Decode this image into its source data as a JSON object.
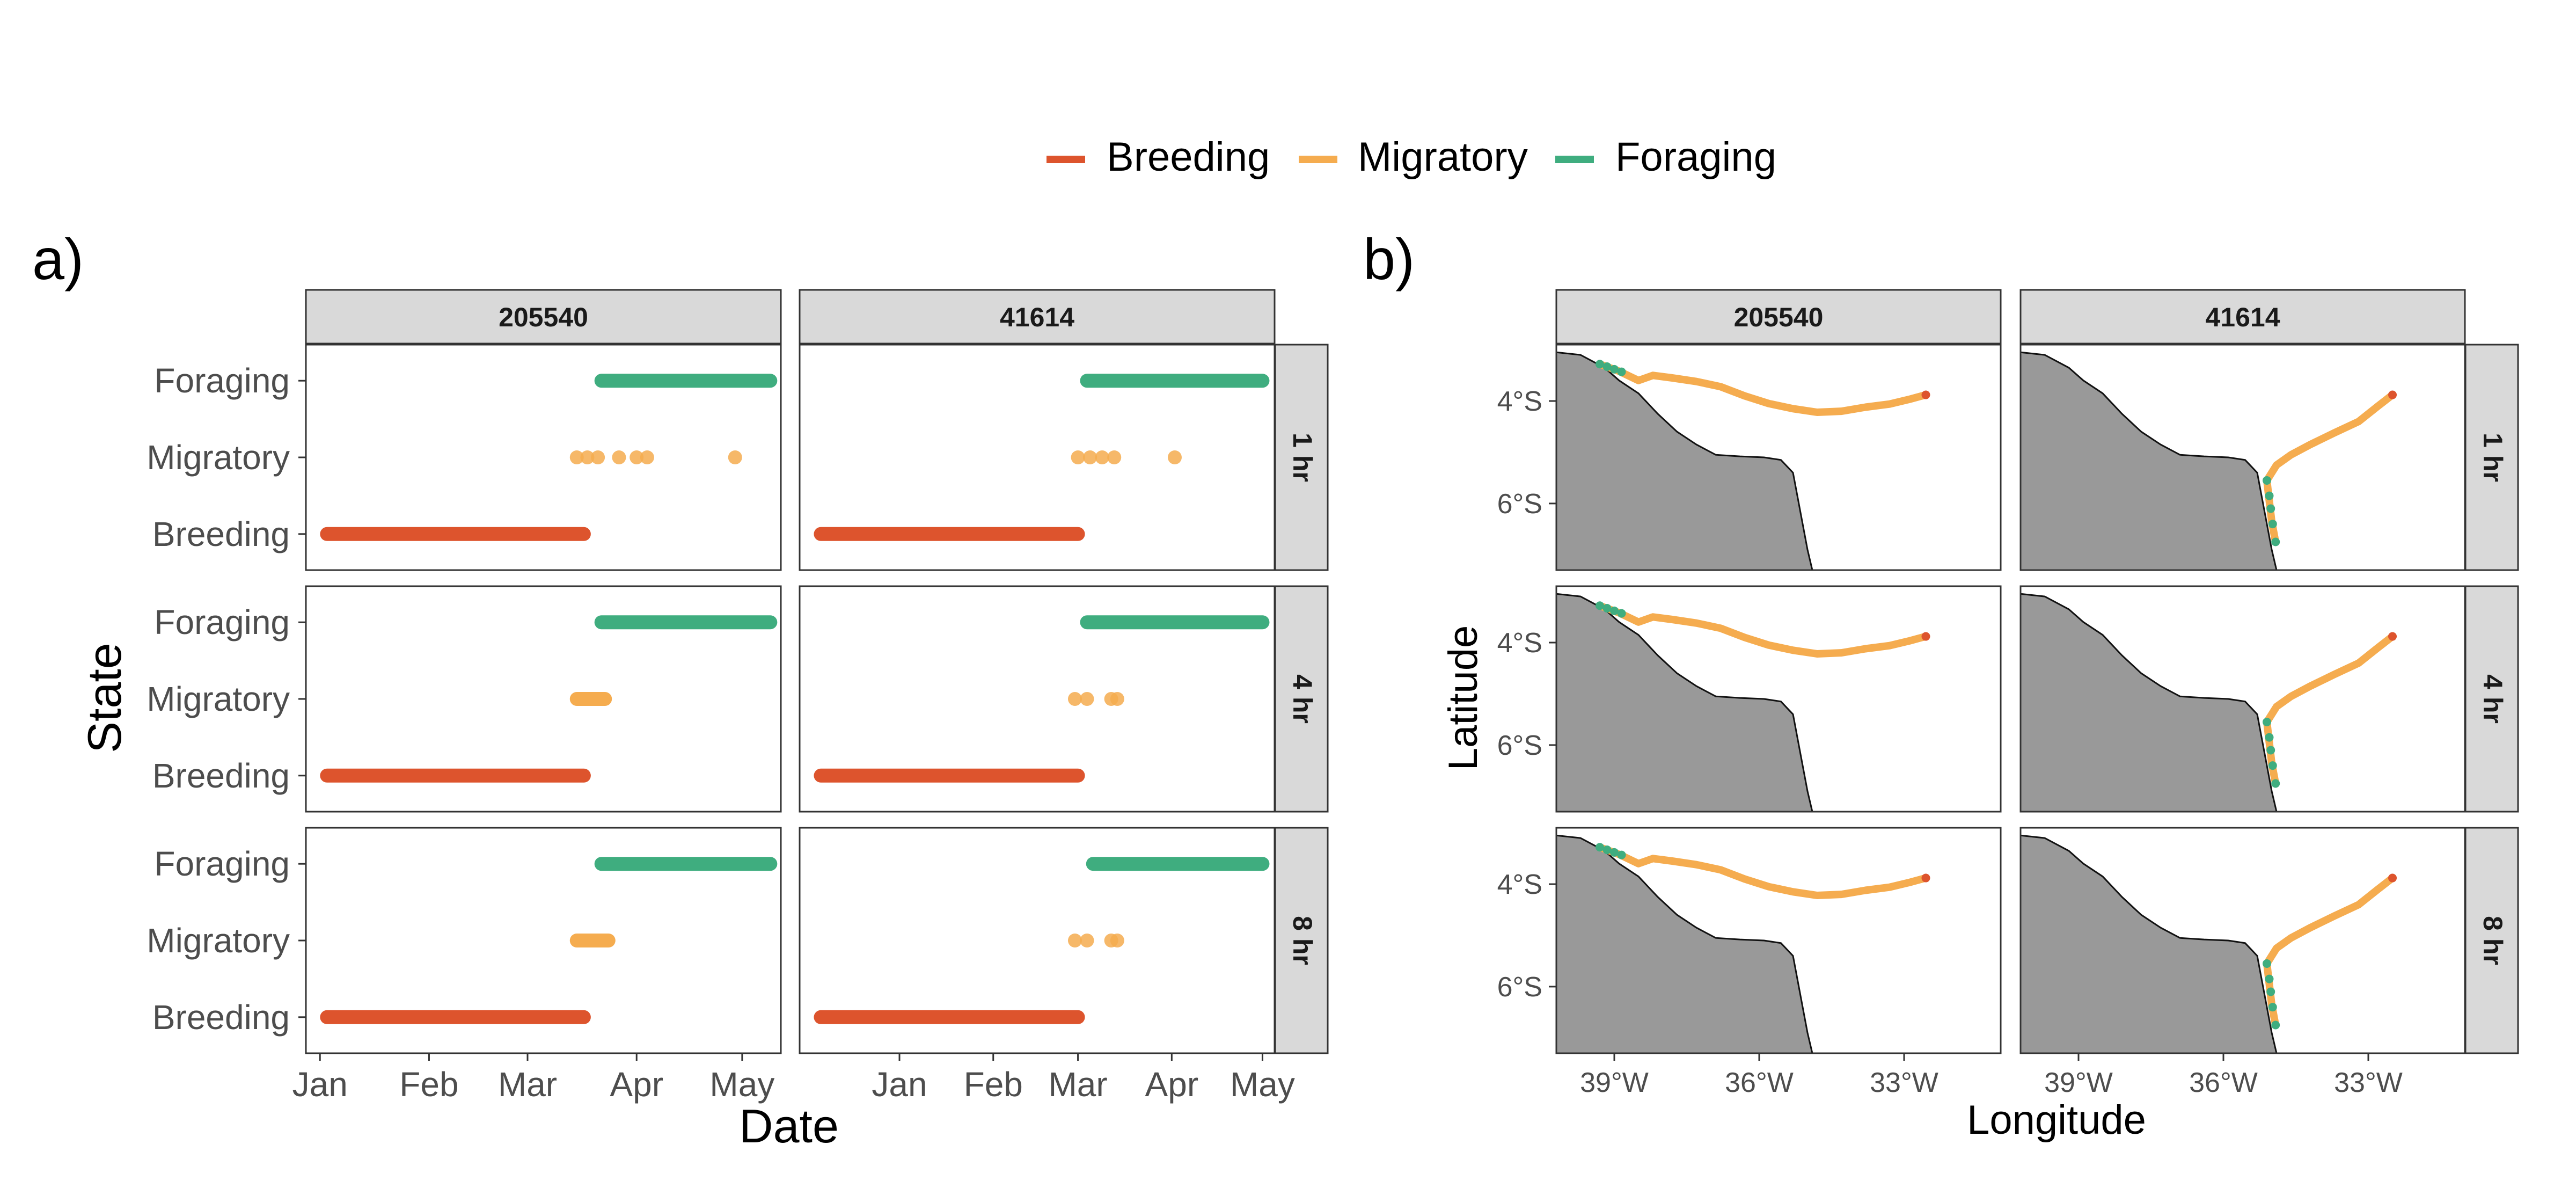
{
  "legend": {
    "items": [
      {
        "label": "Breeding",
        "color": "#DD542D"
      },
      {
        "label": "Migratory",
        "color": "#F5AC4F"
      },
      {
        "label": "Foraging",
        "color": "#3FAD7F"
      }
    ],
    "placement": "top"
  },
  "panel_a": {
    "tag": "a)",
    "facet_columns": [
      "205540",
      "41614"
    ],
    "facet_rows": [
      "1 hr",
      "4 hr",
      "8 hr"
    ],
    "xlabel": "Date",
    "ylabel": "State",
    "y_categories": [
      "Breeding",
      "Migratory",
      "Foraging"
    ],
    "x_ticks_col1": [
      "Jan",
      "Feb",
      "Mar",
      "Apr",
      "May"
    ],
    "x_ticks_col2": [
      "Jan",
      "Feb",
      "Mar",
      "Apr",
      "May"
    ]
  },
  "panel_b": {
    "tag": "b)",
    "facet_columns": [
      "205540",
      "41614"
    ],
    "facet_rows": [
      "1 hr",
      "4 hr",
      "8 hr"
    ],
    "xlabel": "Longitude",
    "ylabel": "Latitude",
    "x_ticks": [
      "39°W",
      "36°W",
      "33°W"
    ],
    "y_ticks": [
      "4°S",
      "6°S"
    ]
  },
  "chart_data": [
    {
      "type": "scatter",
      "description_id": "state-timeline",
      "x_axis": "date",
      "xlim_col1": [
        "2019-12-28",
        "2019-05-12"
      ],
      "panels": [
        {
          "id": "205540",
          "row": "1 hr",
          "segments": [
            {
              "state": "Breeding",
              "start": "2019-01-03",
              "end": "2019-03-17"
            },
            {
              "state": "Migratory",
              "dates": [
                "2019-03-15",
                "2019-03-18",
                "2019-03-21",
                "2019-03-27",
                "2019-04-01",
                "2019-04-04",
                "2019-04-29"
              ]
            },
            {
              "state": "Foraging",
              "start": "2019-03-22",
              "end": "2019-05-09"
            }
          ]
        },
        {
          "id": "41614",
          "row": "1 hr",
          "segments": [
            {
              "state": "Breeding",
              "start": "2018-12-06",
              "end": "2019-03-01"
            },
            {
              "state": "Migratory",
              "dates": [
                "2019-03-01",
                "2019-03-05",
                "2019-03-09",
                "2019-03-13",
                "2019-04-02"
              ]
            },
            {
              "state": "Foraging",
              "start": "2019-03-04",
              "end": "2019-05-01"
            }
          ]
        },
        {
          "id": "205540",
          "row": "4 hr",
          "segments": [
            {
              "state": "Breeding",
              "start": "2019-01-03",
              "end": "2019-03-17"
            },
            {
              "state": "Migratory",
              "start": "2019-03-15",
              "end": "2019-03-23"
            },
            {
              "state": "Foraging",
              "start": "2019-03-22",
              "end": "2019-05-09"
            }
          ]
        },
        {
          "id": "41614",
          "row": "4 hr",
          "segments": [
            {
              "state": "Breeding",
              "start": "2018-12-06",
              "end": "2019-03-01"
            },
            {
              "state": "Migratory",
              "dates": [
                "2019-02-28",
                "2019-03-04",
                "2019-03-12",
                "2019-03-14"
              ]
            },
            {
              "state": "Foraging",
              "start": "2019-03-04",
              "end": "2019-05-01"
            }
          ]
        },
        {
          "id": "205540",
          "row": "8 hr",
          "segments": [
            {
              "state": "Breeding",
              "start": "2019-01-03",
              "end": "2019-03-17"
            },
            {
              "state": "Migratory",
              "start": "2019-03-15",
              "end": "2019-03-24"
            },
            {
              "state": "Foraging",
              "start": "2019-03-22",
              "end": "2019-05-09"
            }
          ]
        },
        {
          "id": "41614",
          "row": "8 hr",
          "segments": [
            {
              "state": "Breeding",
              "start": "2018-12-06",
              "end": "2019-03-01"
            },
            {
              "state": "Migratory",
              "dates": [
                "2019-02-28",
                "2019-03-04",
                "2019-03-12",
                "2019-03-14"
              ]
            },
            {
              "state": "Foraging",
              "start": "2019-03-06",
              "end": "2019-05-01"
            }
          ]
        }
      ]
    },
    {
      "type": "line",
      "description_id": "tracks-map",
      "x_axis": "longitude (negative = W)",
      "y_axis": "latitude (negative = S)",
      "xlim": [
        -40.2,
        -31.0
      ],
      "ylim": [
        -7.3,
        -2.9
      ],
      "coastline": [
        [
          -40.2,
          -3.05
        ],
        [
          -39.7,
          -3.1
        ],
        [
          -39.2,
          -3.35
        ],
        [
          -38.9,
          -3.6
        ],
        [
          -38.5,
          -3.85
        ],
        [
          -38.1,
          -4.25
        ],
        [
          -37.7,
          -4.6
        ],
        [
          -37.3,
          -4.85
        ],
        [
          -36.9,
          -5.05
        ],
        [
          -36.4,
          -5.08
        ],
        [
          -35.9,
          -5.1
        ],
        [
          -35.55,
          -5.15
        ],
        [
          -35.3,
          -5.4
        ],
        [
          -35.2,
          -5.9
        ],
        [
          -35.1,
          -6.4
        ],
        [
          -35.0,
          -6.9
        ],
        [
          -34.9,
          -7.3
        ]
      ],
      "tracks": [
        {
          "id": "205540",
          "path": [
            [
              -39.3,
              -3.28
            ],
            [
              -38.9,
              -3.42
            ],
            [
              -38.5,
              -3.6
            ],
            [
              -38.2,
              -3.5
            ],
            [
              -37.8,
              -3.55
            ],
            [
              -37.3,
              -3.62
            ],
            [
              -36.8,
              -3.72
            ],
            [
              -36.3,
              -3.9
            ],
            [
              -35.8,
              -4.05
            ],
            [
              -35.3,
              -4.15
            ],
            [
              -34.8,
              -4.22
            ],
            [
              -34.3,
              -4.2
            ],
            [
              -33.8,
              -4.12
            ],
            [
              -33.3,
              -4.06
            ],
            [
              -32.9,
              -3.97
            ],
            [
              -32.55,
              -3.88
            ]
          ],
          "foraging": [
            [
              -39.3,
              -3.28
            ],
            [
              -39.15,
              -3.33
            ],
            [
              -39.0,
              -3.38
            ],
            [
              -38.85,
              -3.43
            ]
          ],
          "breeding": [
            [
              -32.55,
              -3.88
            ]
          ]
        },
        {
          "id": "41614",
          "path": [
            [
              -32.5,
              -3.88
            ],
            [
              -32.8,
              -4.1
            ],
            [
              -33.2,
              -4.4
            ],
            [
              -33.7,
              -4.62
            ],
            [
              -34.2,
              -4.85
            ],
            [
              -34.6,
              -5.05
            ],
            [
              -34.9,
              -5.25
            ],
            [
              -35.1,
              -5.55
            ],
            [
              -35.05,
              -5.95
            ],
            [
              -35.0,
              -6.35
            ],
            [
              -34.92,
              -6.75
            ]
          ],
          "foraging": [
            [
              -35.1,
              -5.55
            ],
            [
              -35.05,
              -5.85
            ],
            [
              -35.02,
              -6.1
            ],
            [
              -34.98,
              -6.4
            ],
            [
              -34.92,
              -6.75
            ]
          ],
          "breeding": [
            [
              -32.5,
              -3.88
            ]
          ]
        }
      ]
    }
  ]
}
